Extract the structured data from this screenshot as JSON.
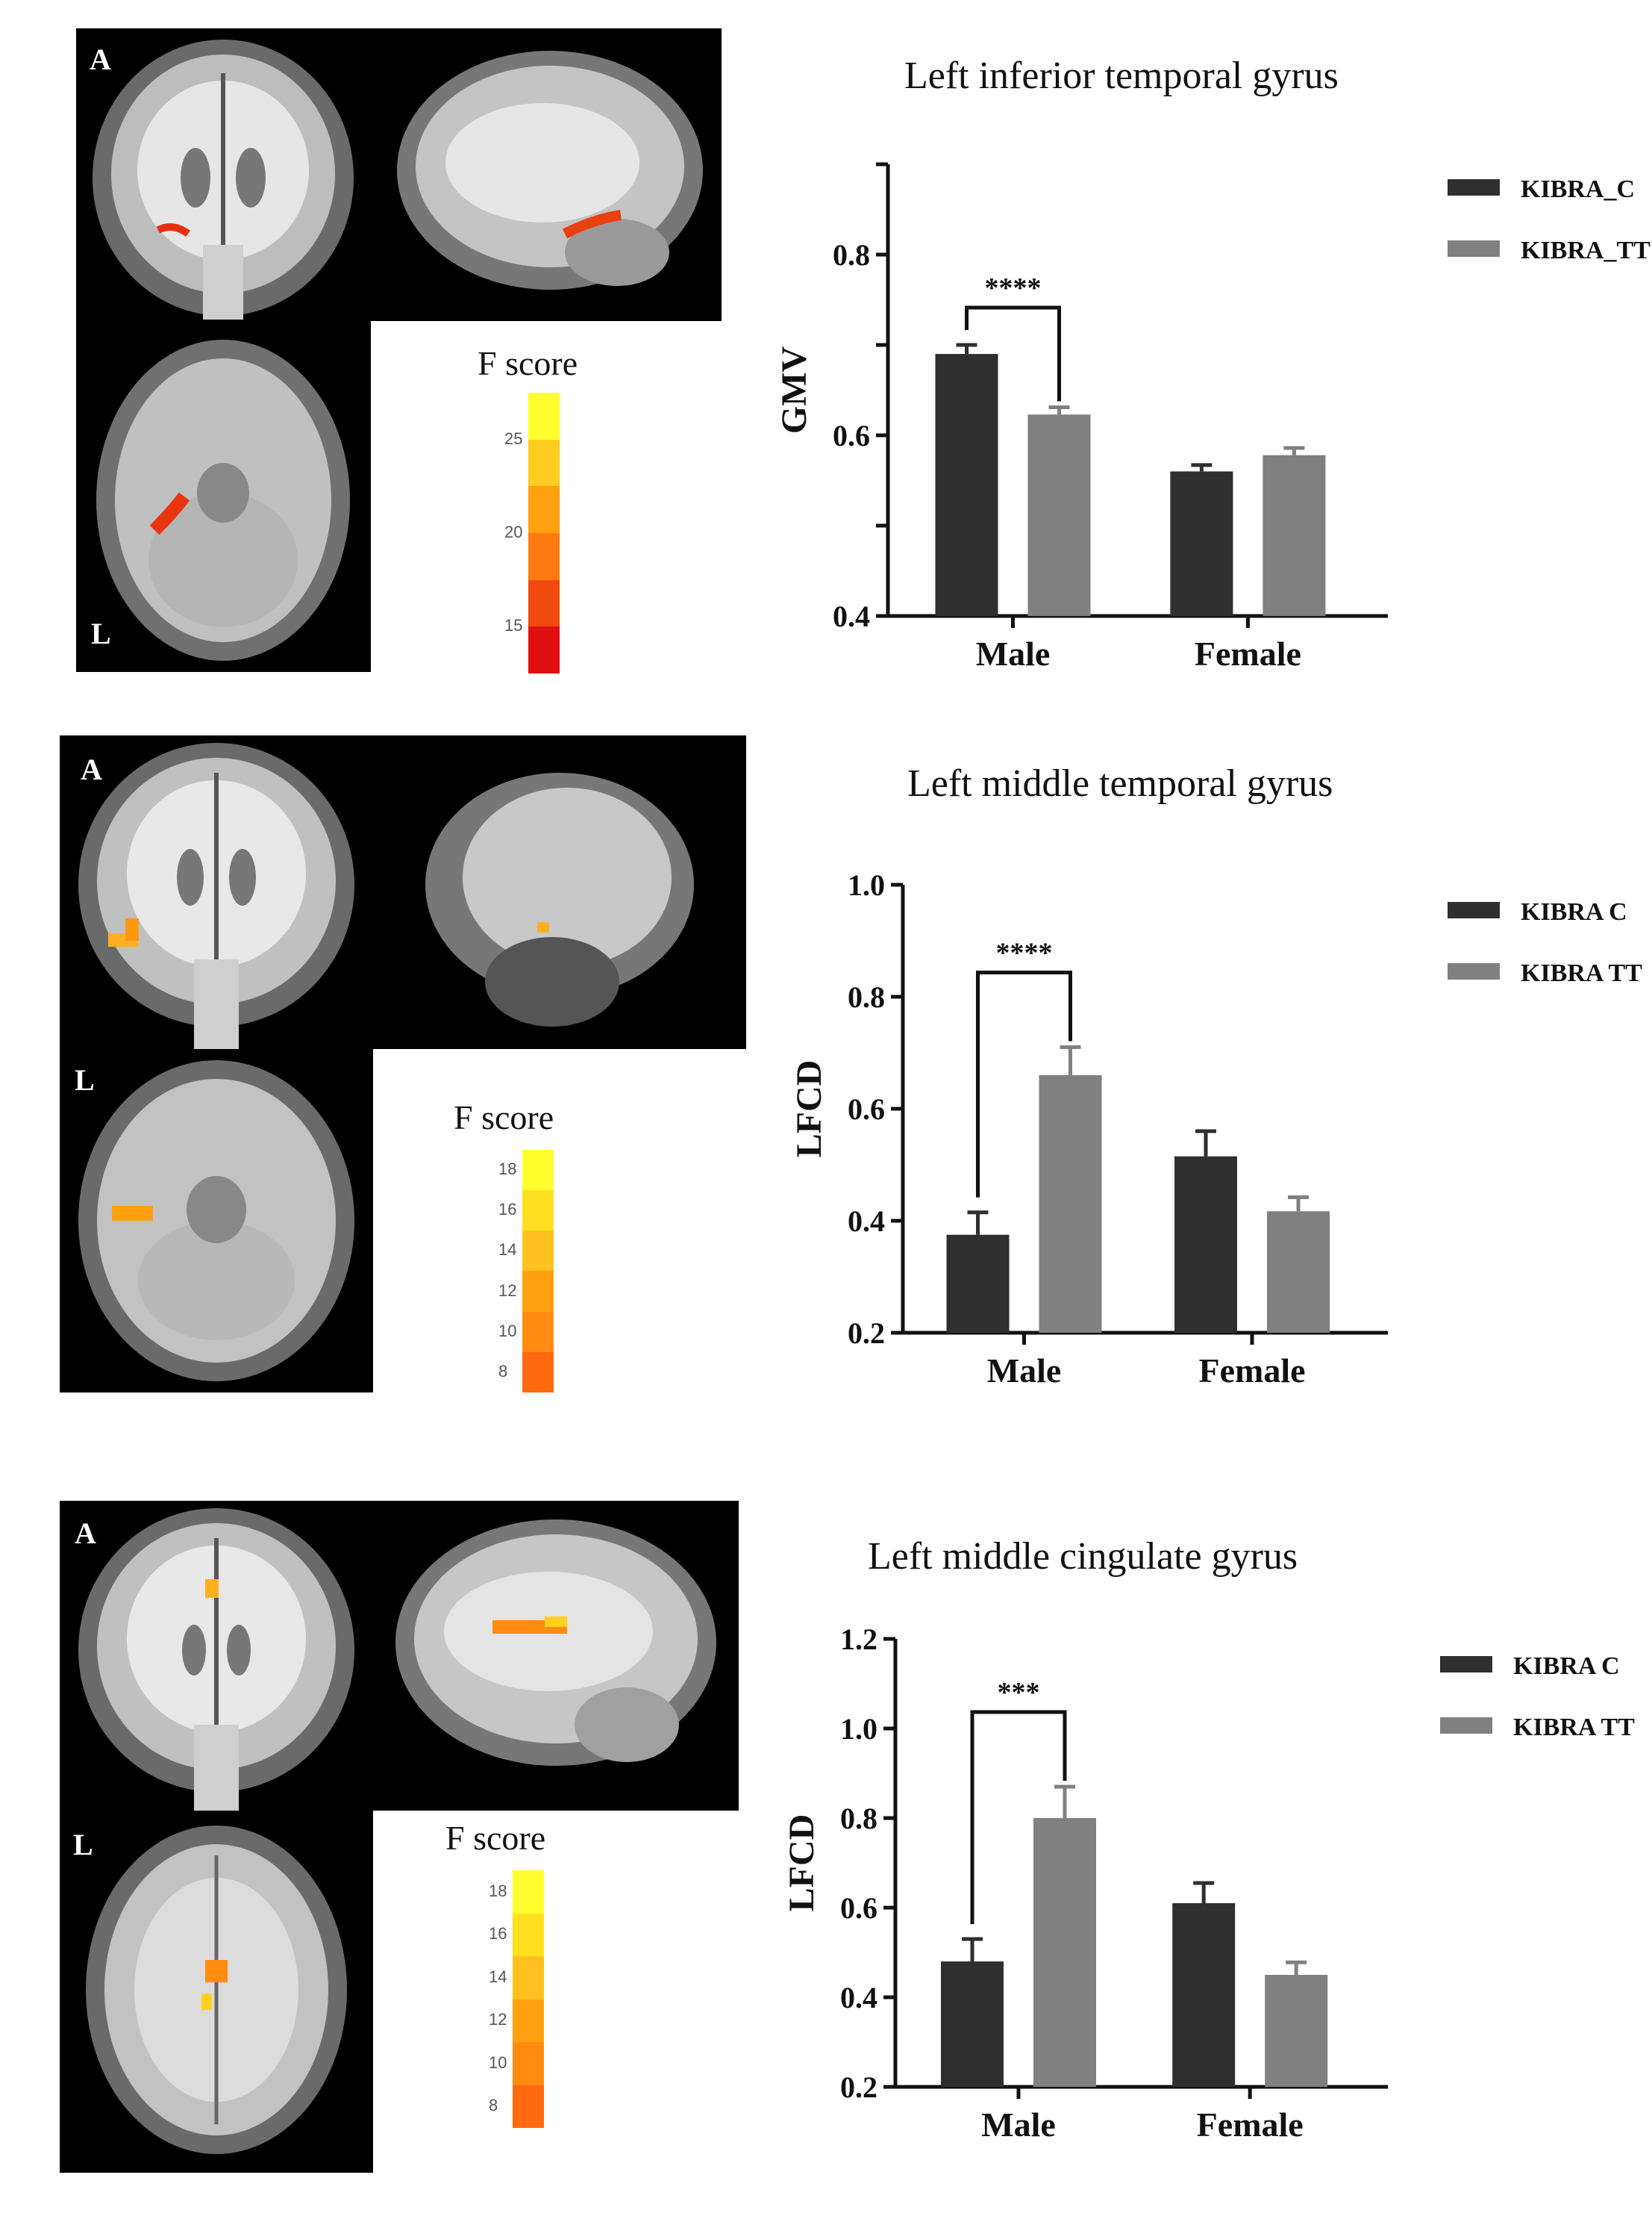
{
  "colors": {
    "kibra_c": "#2f2f2f",
    "kibra_tt": "#808080",
    "brain_bg": "#000000",
    "heat_low": "#e02010",
    "heat_high": "#ffff30"
  },
  "figures": [
    {
      "panel_letters": [
        "A",
        "L"
      ],
      "colorbar": {
        "title": "F score",
        "ticks": [
          "25",
          "20",
          "15"
        ],
        "segments": [
          "#ffff30",
          "#ffcc20",
          "#ffa010",
          "#ff7a10",
          "#f04a10",
          "#e01010"
        ]
      }
    },
    {
      "panel_letters": [
        "A",
        "L"
      ],
      "colorbar": {
        "title": "F score",
        "ticks": [
          "18",
          "16",
          "14",
          "12",
          "10",
          "8"
        ],
        "segments": [
          "#ffff30",
          "#ffe020",
          "#ffc020",
          "#ffa010",
          "#ff8c10",
          "#ff6a10"
        ]
      }
    },
    {
      "panel_letters": [
        "A",
        "L"
      ],
      "colorbar": {
        "title": "F score",
        "ticks": [
          "18",
          "16",
          "14",
          "12",
          "10",
          "8"
        ],
        "segments": [
          "#ffff30",
          "#ffe020",
          "#ffc020",
          "#ffa010",
          "#ff8c10",
          "#ff6a10"
        ]
      }
    }
  ],
  "chart_data": [
    {
      "type": "bar",
      "title": "Left inferior temporal gyrus",
      "ylabel": "GMV",
      "xlabel": "",
      "categories": [
        "Male",
        "Female"
      ],
      "ylim": [
        0.4,
        0.9
      ],
      "yticks": [
        "0.4",
        "0.6",
        "0.8"
      ],
      "ytick_values": [
        0.4,
        0.6,
        0.8
      ],
      "minor_ticks": [
        0.5,
        0.7,
        0.9
      ],
      "series": [
        {
          "name": "KIBRA_C",
          "values": [
            0.69,
            0.56
          ],
          "errors": [
            0.01,
            0.007
          ]
        },
        {
          "name": "KIBRA_TT",
          "values": [
            0.623,
            0.578
          ],
          "errors": [
            0.008,
            0.008
          ]
        }
      ],
      "significance": {
        "label": "****",
        "category": 0
      },
      "legend": "top-right",
      "grid": false
    },
    {
      "type": "bar",
      "title": "Left middle temporal gyrus",
      "ylabel": "LFCD",
      "xlabel": "",
      "categories": [
        "Male",
        "Female"
      ],
      "ylim": [
        0.2,
        1.0
      ],
      "yticks": [
        "0.2",
        "0.4",
        "0.6",
        "0.8",
        "1.0"
      ],
      "ytick_values": [
        0.2,
        0.4,
        0.6,
        0.8,
        1.0
      ],
      "minor_ticks": [],
      "series": [
        {
          "name": "KIBRA C",
          "values": [
            0.375,
            0.515
          ],
          "errors": [
            0.04,
            0.045
          ]
        },
        {
          "name": "KIBRA TT",
          "values": [
            0.66,
            0.417
          ],
          "errors": [
            0.05,
            0.025
          ]
        }
      ],
      "significance": {
        "label": "****",
        "category": 0
      },
      "legend": "top-right",
      "grid": false
    },
    {
      "type": "bar",
      "title": "Left middle cingulate gyrus",
      "ylabel": "LFCD",
      "xlabel": "",
      "categories": [
        "Male",
        "Female"
      ],
      "ylim": [
        0.2,
        1.2
      ],
      "yticks": [
        "0.2",
        "0.4",
        "0.6",
        "0.8",
        "1.0",
        "1.2"
      ],
      "ytick_values": [
        0.2,
        0.4,
        0.6,
        0.8,
        1.0,
        1.2
      ],
      "minor_ticks": [],
      "series": [
        {
          "name": "KIBRA C",
          "values": [
            0.48,
            0.61
          ],
          "errors": [
            0.05,
            0.045
          ]
        },
        {
          "name": "KIBRA TT",
          "values": [
            0.8,
            0.45
          ],
          "errors": [
            0.07,
            0.028
          ]
        }
      ],
      "significance": {
        "label": "***",
        "category": 0
      },
      "legend": "top-right",
      "grid": false
    }
  ]
}
